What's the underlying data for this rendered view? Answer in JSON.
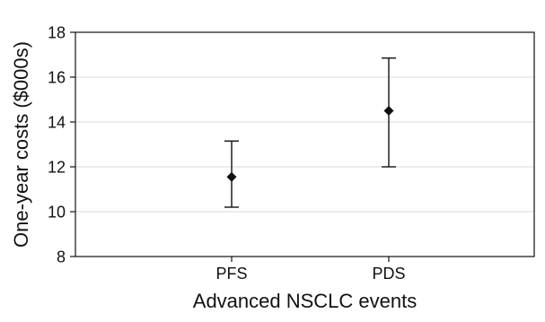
{
  "chart_data": {
    "type": "errorbar",
    "title": "",
    "xlabel": "Advanced NSCLC events",
    "ylabel": "One-year costs ($000s)",
    "categories": [
      "PFS",
      "PDS"
    ],
    "series": [
      {
        "values": [
          11.55,
          14.5
        ],
        "lower": [
          10.2,
          12.0
        ],
        "upper": [
          13.15,
          16.85
        ]
      }
    ],
    "ylim": [
      8,
      18
    ],
    "yticks": [
      "8",
      "10",
      "12",
      "14",
      "16",
      "18"
    ],
    "grid": true,
    "legend": "none",
    "colors": {
      "marker": "#111111",
      "errorbar": "#111111",
      "axis": "#111111",
      "grid": "#d9d9d9"
    }
  }
}
